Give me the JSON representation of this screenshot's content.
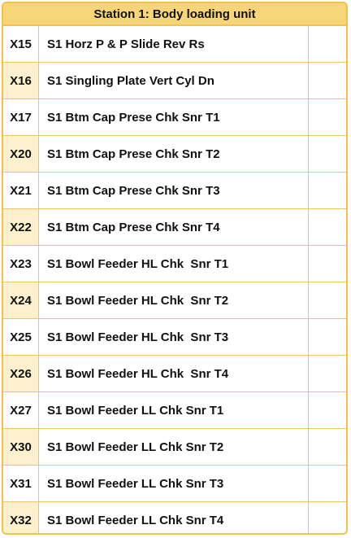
{
  "panel": {
    "title": "Station 1: Body loading unit",
    "rows": [
      {
        "addr": "X15",
        "label": "S1 Horz P & P Slide Rev Rs"
      },
      {
        "addr": "X16",
        "label": "S1 Singling Plate Vert Cyl Dn"
      },
      {
        "addr": "X17",
        "label": "S1 Btm Cap Prese Chk Snr T1"
      },
      {
        "addr": "X20",
        "label": "S1 Btm Cap Prese Chk Snr T2"
      },
      {
        "addr": "X21",
        "label": "S1 Btm Cap Prese Chk Snr T3"
      },
      {
        "addr": "X22",
        "label": "S1 Btm Cap Prese Chk Snr T4"
      },
      {
        "addr": "X23",
        "label": "S1 Bowl Feeder HL Chk  Snr T1"
      },
      {
        "addr": "X24",
        "label": "S1 Bowl Feeder HL Chk  Snr T2"
      },
      {
        "addr": "X25",
        "label": "S1 Bowl Feeder HL Chk  Snr T3"
      },
      {
        "addr": "X26",
        "label": "S1 Bowl Feeder HL Chk  Snr T4"
      },
      {
        "addr": "X27",
        "label": "S1 Bowl Feeder LL Chk Snr T1"
      },
      {
        "addr": "X30",
        "label": "S1 Bowl Feeder LL Chk Snr T2"
      },
      {
        "addr": "X31",
        "label": "S1 Bowl Feeder LL Chk Snr T3"
      },
      {
        "addr": "X32",
        "label": "S1 Bowl Feeder LL Chk Snr T4"
      }
    ]
  },
  "colors": {
    "border": "#f3c04a",
    "header_bg": "#f7d67a",
    "alt_cell_bg": "#fdf0cc"
  }
}
